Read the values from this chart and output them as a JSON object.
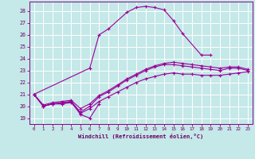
{
  "background_color": "#c5e8e8",
  "grid_color": "#ffffff",
  "line_color": "#990099",
  "xlabel": "Windchill (Refroidissement éolien,°C)",
  "ylabel_ticks": [
    19,
    20,
    21,
    22,
    23,
    24,
    25,
    26,
    27,
    28
  ],
  "xlim": [
    -0.5,
    23.5
  ],
  "ylim": [
    18.5,
    28.8
  ],
  "xticks": [
    0,
    1,
    2,
    3,
    4,
    5,
    6,
    7,
    8,
    9,
    10,
    11,
    12,
    13,
    14,
    15,
    16,
    17,
    18,
    19,
    20,
    21,
    22,
    23
  ],
  "series": [
    {
      "x": [
        0,
        1,
        2,
        3,
        4,
        5,
        6,
        7
      ],
      "y": [
        21.0,
        20.0,
        20.2,
        20.2,
        20.4,
        19.3,
        19.0,
        20.2
      ]
    },
    {
      "x": [
        0,
        6,
        7,
        8,
        10,
        11,
        12,
        13,
        14,
        15,
        16,
        18,
        19
      ],
      "y": [
        21.0,
        23.2,
        26.0,
        26.5,
        27.9,
        28.3,
        28.4,
        28.3,
        28.1,
        27.2,
        26.1,
        24.3,
        24.3
      ]
    },
    {
      "x": [
        0,
        1,
        2,
        3,
        4,
        5,
        6,
        7,
        8,
        9,
        10,
        11,
        12,
        13,
        14,
        15,
        16,
        17,
        18,
        19,
        20,
        21,
        22,
        23
      ],
      "y": [
        21.0,
        20.0,
        20.2,
        20.3,
        20.4,
        19.5,
        20.0,
        20.8,
        21.2,
        21.7,
        22.2,
        22.6,
        23.0,
        23.3,
        23.5,
        23.5,
        23.4,
        23.3,
        23.2,
        23.1,
        23.0,
        23.2,
        23.2,
        23.0
      ]
    },
    {
      "x": [
        0,
        1,
        2,
        3,
        4,
        5,
        6,
        7,
        8,
        9,
        10,
        11,
        12,
        13,
        14,
        15,
        16,
        17,
        18,
        19,
        20,
        21,
        22,
        23
      ],
      "y": [
        21.0,
        20.0,
        20.2,
        20.2,
        20.3,
        19.4,
        19.8,
        20.4,
        20.8,
        21.2,
        21.6,
        22.0,
        22.3,
        22.5,
        22.7,
        22.8,
        22.7,
        22.7,
        22.6,
        22.6,
        22.6,
        22.7,
        22.8,
        22.9
      ]
    },
    {
      "x": [
        0,
        1,
        2,
        3,
        4,
        5,
        6,
        7,
        8,
        9,
        10,
        11,
        12,
        13,
        14,
        15,
        16,
        17,
        18,
        19,
        20,
        21,
        22,
        23
      ],
      "y": [
        21.0,
        20.1,
        20.3,
        20.4,
        20.5,
        19.8,
        20.2,
        20.9,
        21.3,
        21.8,
        22.3,
        22.7,
        23.1,
        23.4,
        23.6,
        23.7,
        23.6,
        23.5,
        23.4,
        23.3,
        23.2,
        23.3,
        23.3,
        23.1
      ]
    }
  ]
}
